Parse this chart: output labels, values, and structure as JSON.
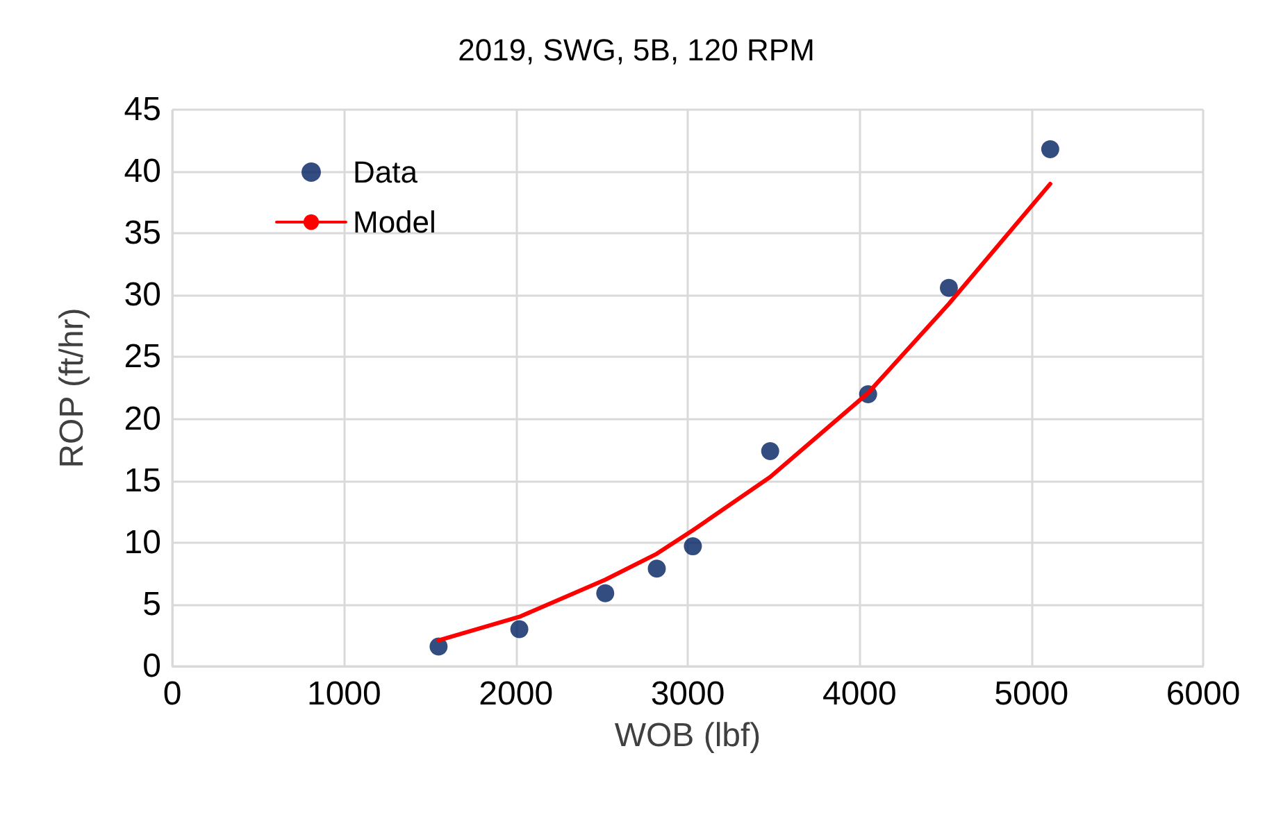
{
  "chart_data": {
    "type": "scatter",
    "title": "2019, SWG, 5B, 120 RPM",
    "xlabel": "WOB (lbf)",
    "ylabel": "ROP (ft/hr)",
    "xlim": [
      0,
      6000
    ],
    "xticks": [
      0,
      1000,
      2000,
      3000,
      4000,
      5000,
      6000
    ],
    "ylim": [
      0,
      45
    ],
    "yticks": [
      0,
      5,
      10,
      15,
      20,
      25,
      30,
      35,
      40,
      45
    ],
    "grid": true,
    "legend": "top left",
    "series": [
      {
        "name": "Data",
        "marker": "circle",
        "color": "#002060",
        "x": [
          1550,
          2020,
          2520,
          2820,
          3030,
          3480,
          4050,
          4520,
          5110
        ],
        "values": [
          1.6,
          3.0,
          5.9,
          7.9,
          9.7,
          17.4,
          22.0,
          30.6,
          41.8
        ]
      },
      {
        "name": "Model",
        "type": "line",
        "marker": "none",
        "line_style": "solid",
        "color": "#ff0000",
        "x": [
          1550,
          2020,
          2520,
          2820,
          3030,
          3480,
          4050,
          4520,
          5110
        ],
        "values": [
          2.1,
          4.0,
          7.0,
          9.1,
          11.0,
          15.3,
          22.1,
          29.3,
          39.0
        ]
      }
    ]
  }
}
